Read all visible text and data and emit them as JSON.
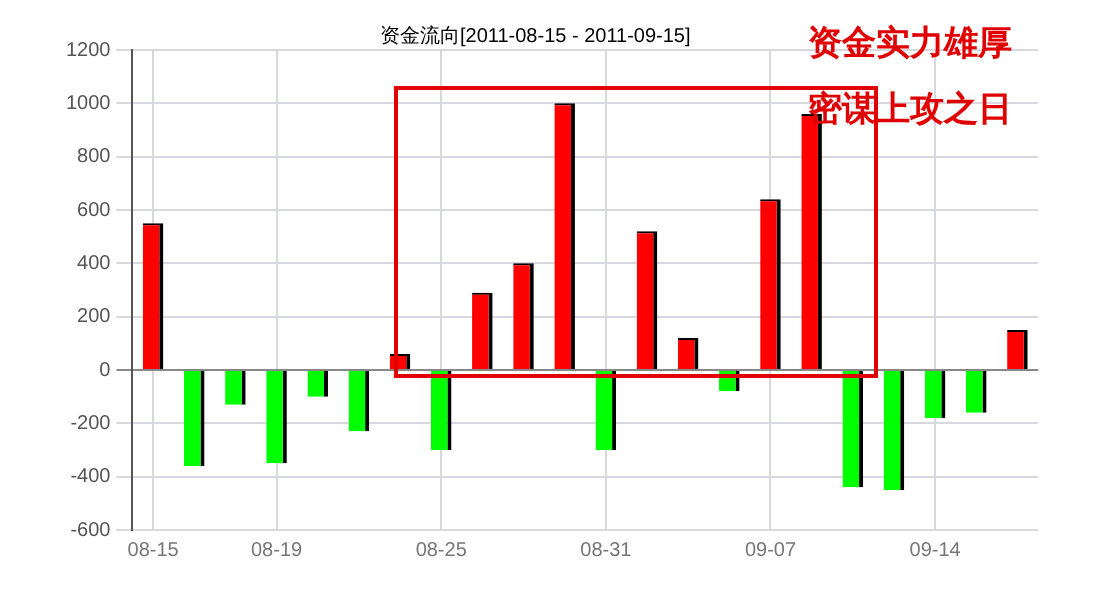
{
  "chart_data": {
    "type": "bar",
    "title": "资金流向[2011-08-15 - 2011-09-15]",
    "annotations": [
      "资金实力雄厚",
      "密谋上攻之日"
    ],
    "categories": [
      "08-15",
      null,
      null,
      "08-19",
      null,
      null,
      null,
      "08-25",
      null,
      null,
      null,
      "08-31",
      null,
      null,
      null,
      "09-07",
      null,
      null,
      null,
      "09-14",
      null,
      null
    ],
    "values": [
      550,
      -360,
      -130,
      -350,
      -100,
      -230,
      60,
      -300,
      290,
      400,
      1000,
      -300,
      520,
      120,
      -80,
      640,
      960,
      -440,
      -450,
      -180,
      -160,
      150
    ],
    "colors": [
      "#ff0000",
      "#00ff00",
      "#00ff00",
      "#00ff00",
      "#00ff00",
      "#00ff00",
      "#ff0000",
      "#00ff00",
      "#ff0000",
      "#ff0000",
      "#ff0000",
      "#00ff00",
      "#ff0000",
      "#ff0000",
      "#00ff00",
      "#ff0000",
      "#ff0000",
      "#00ff00",
      "#00ff00",
      "#00ff00",
      "#00ff00",
      "#ff0000"
    ],
    "ylim": [
      -600,
      1200
    ],
    "yticks": [
      -600,
      -400,
      -200,
      0,
      200,
      400,
      600,
      800,
      1000,
      1200
    ],
    "grid": true,
    "legend": false
  }
}
